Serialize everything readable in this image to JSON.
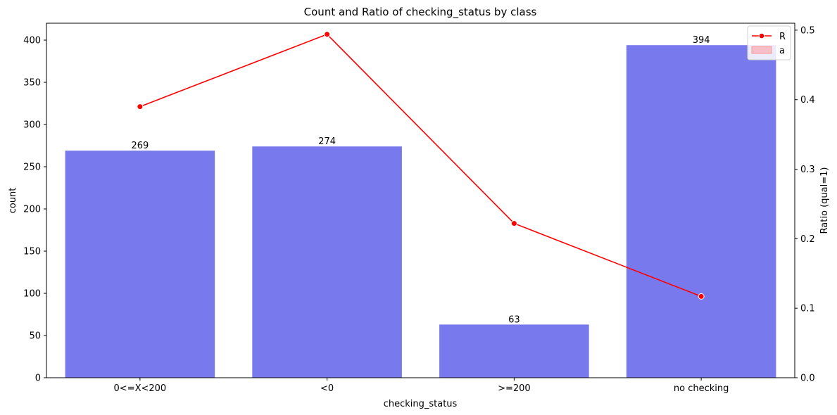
{
  "chart_data": {
    "type": "bar",
    "title": "Count and Ratio of checking_status by class",
    "xlabel": "checking_status",
    "ylabel": "count",
    "y2label": "Ratio (qual=1)",
    "categories": [
      "0<=X<200",
      "<0",
      ">=200",
      "no checking"
    ],
    "series": [
      {
        "type": "bar",
        "values": [
          269,
          274,
          63,
          394
        ],
        "color": "#7879ec"
      },
      {
        "type": "line",
        "values": [
          0.39,
          0.494,
          0.222,
          0.117
        ],
        "color": "#ff0000"
      }
    ],
    "data_labels": [
      "269",
      "274",
      "63",
      "394"
    ],
    "ylim": [
      0,
      420
    ],
    "y2lim": [
      0,
      0.51
    ],
    "yticks": [
      0,
      50,
      100,
      150,
      200,
      250,
      300,
      350,
      400
    ],
    "y2ticks": [
      0.0,
      0.1,
      0.2,
      0.3,
      0.4,
      0.5
    ],
    "grid": false,
    "legend": {
      "placement": "top-right",
      "entries": [
        {
          "label": "R",
          "marker": "line"
        },
        {
          "label": "a",
          "marker": "patch"
        }
      ]
    }
  }
}
